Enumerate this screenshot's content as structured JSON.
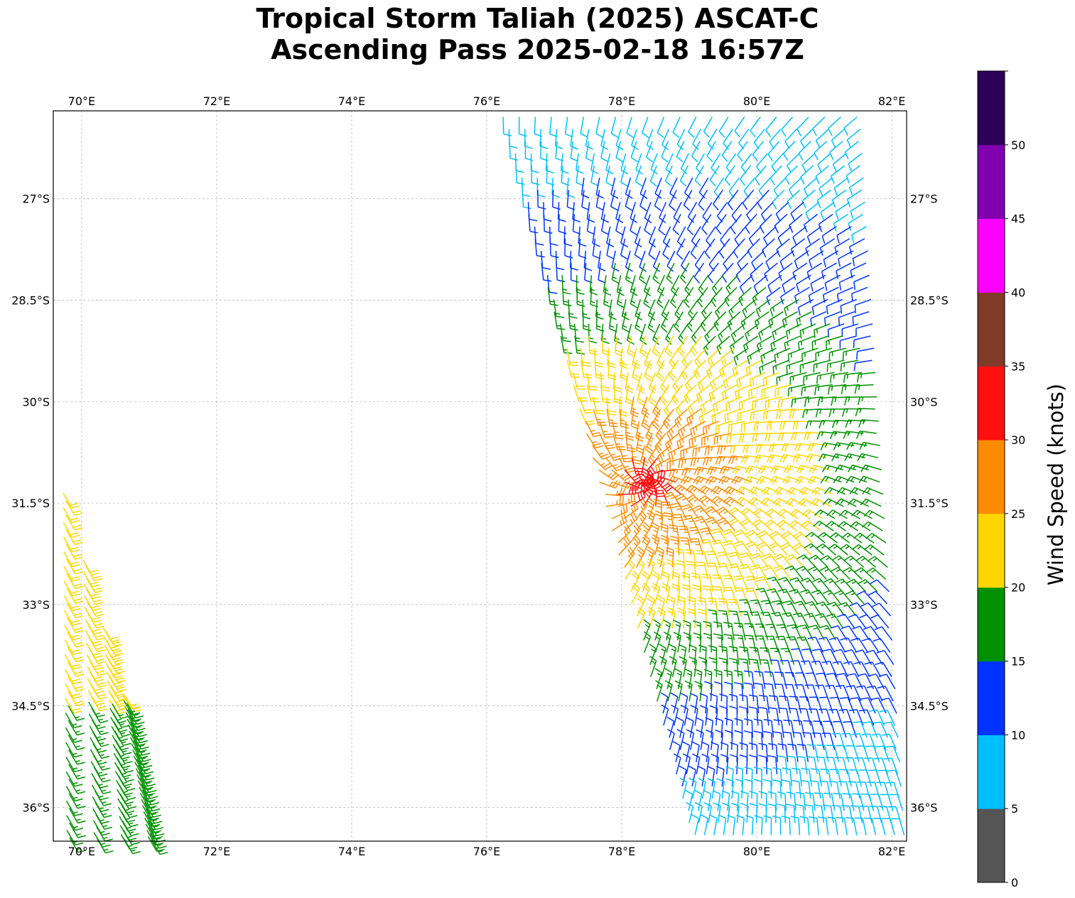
{
  "title": {
    "line1": "Tropical Storm Taliah (2025) ASCAT-C",
    "line2": "Ascending Pass 2025-02-18 16:57Z"
  },
  "map": {
    "lon_range": [
      69.58,
      82.22
    ],
    "lat_range": [
      -36.5,
      -25.7
    ],
    "lon_ticks": [
      70,
      72,
      74,
      76,
      78,
      80,
      82
    ],
    "lon_tick_labels": [
      "70°E",
      "72°E",
      "74°E",
      "76°E",
      "78°E",
      "80°E",
      "82°E"
    ],
    "lat_ticks": [
      -27,
      -28.5,
      -30,
      -31.5,
      -33,
      -34.5,
      -36
    ],
    "lat_tick_labels": [
      "27°S",
      "28.5°S",
      "30°S",
      "31.5°S",
      "33°S",
      "34.5°S",
      "36°S"
    ],
    "grid": true,
    "gridline_color": "#b0b0b0"
  },
  "colorbar": {
    "label": "Wind Speed (knots)",
    "tick_labels": [
      "0",
      "5",
      "10",
      "15",
      "20",
      "25",
      "30",
      "35",
      "40",
      "45",
      "50"
    ],
    "bins": [
      {
        "min": 0,
        "max": 5,
        "color": "#555555"
      },
      {
        "min": 5,
        "max": 10,
        "color": "#00bfff"
      },
      {
        "min": 10,
        "max": 15,
        "color": "#0033ff"
      },
      {
        "min": 15,
        "max": 20,
        "color": "#009000"
      },
      {
        "min": 20,
        "max": 25,
        "color": "#ffd700"
      },
      {
        "min": 25,
        "max": 30,
        "color": "#ff8c00"
      },
      {
        "min": 30,
        "max": 35,
        "color": "#ff1010"
      },
      {
        "min": 35,
        "max": 40,
        "color": "#7f3a28"
      },
      {
        "min": 40,
        "max": 45,
        "color": "#ff00ff"
      },
      {
        "min": 45,
        "max": 50,
        "color": "#8000b0"
      },
      {
        "min": 50,
        "max": 55,
        "color": "#2a0058"
      }
    ]
  },
  "wind_swaths": [
    {
      "name": "west swath",
      "corners": [
        [
          69.58,
          -30.8
        ],
        [
          70.75,
          -34.8
        ],
        [
          71.2,
          -36.5
        ],
        [
          69.58,
          -36.5
        ]
      ],
      "rows": 48,
      "cols": 4,
      "field": [
        {
          "lat_min": -34.4,
          "lat_max": -30.8,
          "speed": 22,
          "dir": 150
        },
        {
          "lat_min": -36.5,
          "lat_max": -34.4,
          "speed": 17,
          "dir": 150
        }
      ]
    },
    {
      "name": "east swath",
      "corners": [
        [
          76.1,
          -25.7
        ],
        [
          81.6,
          -25.7
        ],
        [
          82.22,
          -36.5
        ],
        [
          79.0,
          -36.5
        ]
      ],
      "rows": 60,
      "cols": 23,
      "center": [
        78.4,
        -31.2
      ],
      "field": [
        {
          "r_max": 0.45,
          "speed": 32
        },
        {
          "r_max": 1.3,
          "speed": 27
        },
        {
          "r_max": 2.3,
          "speed": 22
        },
        {
          "r_max": 3.3,
          "speed": 17
        },
        {
          "r_max": 4.6,
          "speed": 12
        },
        {
          "r_max": 99,
          "speed": 8
        }
      ]
    }
  ]
}
